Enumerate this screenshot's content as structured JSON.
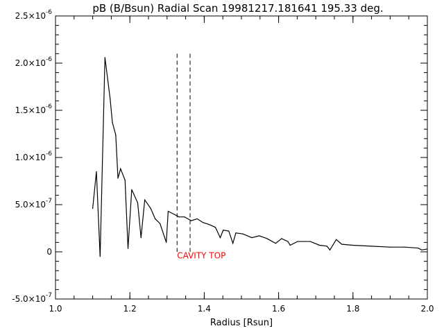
{
  "chart_data": {
    "type": "line",
    "title": "pB (B/Bsun) Radial Scan 19981217.181641 195.33 deg.",
    "xlabel": "Radius [Rsun]",
    "ylabel": "",
    "xlim": [
      1.0,
      2.0
    ],
    "ylim": [
      -5e-07,
      2.5e-06
    ],
    "grid": false,
    "x_ticks": [
      {
        "value": 1.0,
        "label": "1.0"
      },
      {
        "value": 1.2,
        "label": "1.2"
      },
      {
        "value": 1.4,
        "label": "1.4"
      },
      {
        "value": 1.6,
        "label": "1.6"
      },
      {
        "value": 1.8,
        "label": "1.8"
      },
      {
        "value": 2.0,
        "label": "2.0"
      }
    ],
    "y_ticks": [
      {
        "value": -5e-07,
        "mant": "-5.0×10",
        "exp": "-7"
      },
      {
        "value": 0,
        "mant": "0",
        "exp": ""
      },
      {
        "value": 5e-07,
        "mant": "5.0×10",
        "exp": "-7"
      },
      {
        "value": 1e-06,
        "mant": "1.0×10",
        "exp": "-6"
      },
      {
        "value": 1.5e-06,
        "mant": "1.5×10",
        "exp": "-6"
      },
      {
        "value": 2e-06,
        "mant": "2.0×10",
        "exp": "-6"
      },
      {
        "value": 2.5e-06,
        "mant": "2.5×10",
        "exp": "-6"
      }
    ],
    "series": [
      {
        "color": "#000000",
        "points": [
          [
            1.1,
            4.6e-07
          ],
          [
            1.11,
            8.5e-07
          ],
          [
            1.12,
            -5e-08
          ],
          [
            1.133,
            2.06e-06
          ],
          [
            1.147,
            1.62e-06
          ],
          [
            1.153,
            1.37e-06
          ],
          [
            1.162,
            1.24e-06
          ],
          [
            1.168,
            7.8e-07
          ],
          [
            1.175,
            8.8e-07
          ],
          [
            1.187,
            7.6e-07
          ],
          [
            1.195,
            3.5e-08
          ],
          [
            1.205,
            6.6e-07
          ],
          [
            1.221,
            5.2e-07
          ],
          [
            1.23,
            1.5e-07
          ],
          [
            1.24,
            5.5e-07
          ],
          [
            1.256,
            4.6e-07
          ],
          [
            1.268,
            3.5e-07
          ],
          [
            1.281,
            3e-07
          ],
          [
            1.298,
            1e-07
          ],
          [
            1.303,
            4.3e-07
          ],
          [
            1.318,
            4e-07
          ],
          [
            1.332,
            3.7e-07
          ],
          [
            1.347,
            3.7e-07
          ],
          [
            1.365,
            3.3e-07
          ],
          [
            1.381,
            3.5e-07
          ],
          [
            1.397,
            3.1e-07
          ],
          [
            1.413,
            2.9e-07
          ],
          [
            1.43,
            2.6e-07
          ],
          [
            1.443,
            1.5e-07
          ],
          [
            1.451,
            2.3e-07
          ],
          [
            1.466,
            2.2e-07
          ],
          [
            1.477,
            9e-08
          ],
          [
            1.485,
            2e-07
          ],
          [
            1.504,
            1.9e-07
          ],
          [
            1.528,
            1.5e-07
          ],
          [
            1.548,
            1.7e-07
          ],
          [
            1.569,
            1.4e-07
          ],
          [
            1.592,
            9e-08
          ],
          [
            1.608,
            1.4e-07
          ],
          [
            1.625,
            1.1e-07
          ],
          [
            1.631,
            7e-08
          ],
          [
            1.651,
            1.1e-07
          ],
          [
            1.685,
            1.1e-07
          ],
          [
            1.71,
            7e-08
          ],
          [
            1.73,
            6e-08
          ],
          [
            1.738,
            2e-08
          ],
          [
            1.755,
            1.3e-07
          ],
          [
            1.77,
            8e-08
          ],
          [
            1.8,
            7e-08
          ],
          [
            1.85,
            6e-08
          ],
          [
            1.9,
            5e-08
          ],
          [
            1.938,
            5e-08
          ],
          [
            1.975,
            4e-08
          ],
          [
            1.985,
            2e-08
          ],
          [
            2.0,
            3e-08
          ]
        ]
      }
    ],
    "vlines": [
      {
        "x": 1.327,
        "style": "dashed",
        "y_top": 2.1e-06,
        "y_bottom": 0
      },
      {
        "x": 1.362,
        "style": "dashed",
        "y_top": 2.1e-06,
        "y_bottom": 0
      }
    ],
    "annotations": [
      {
        "text": "CAVITY TOP",
        "x": 1.327,
        "y": -4e-08,
        "color": "#ff0000"
      }
    ]
  }
}
